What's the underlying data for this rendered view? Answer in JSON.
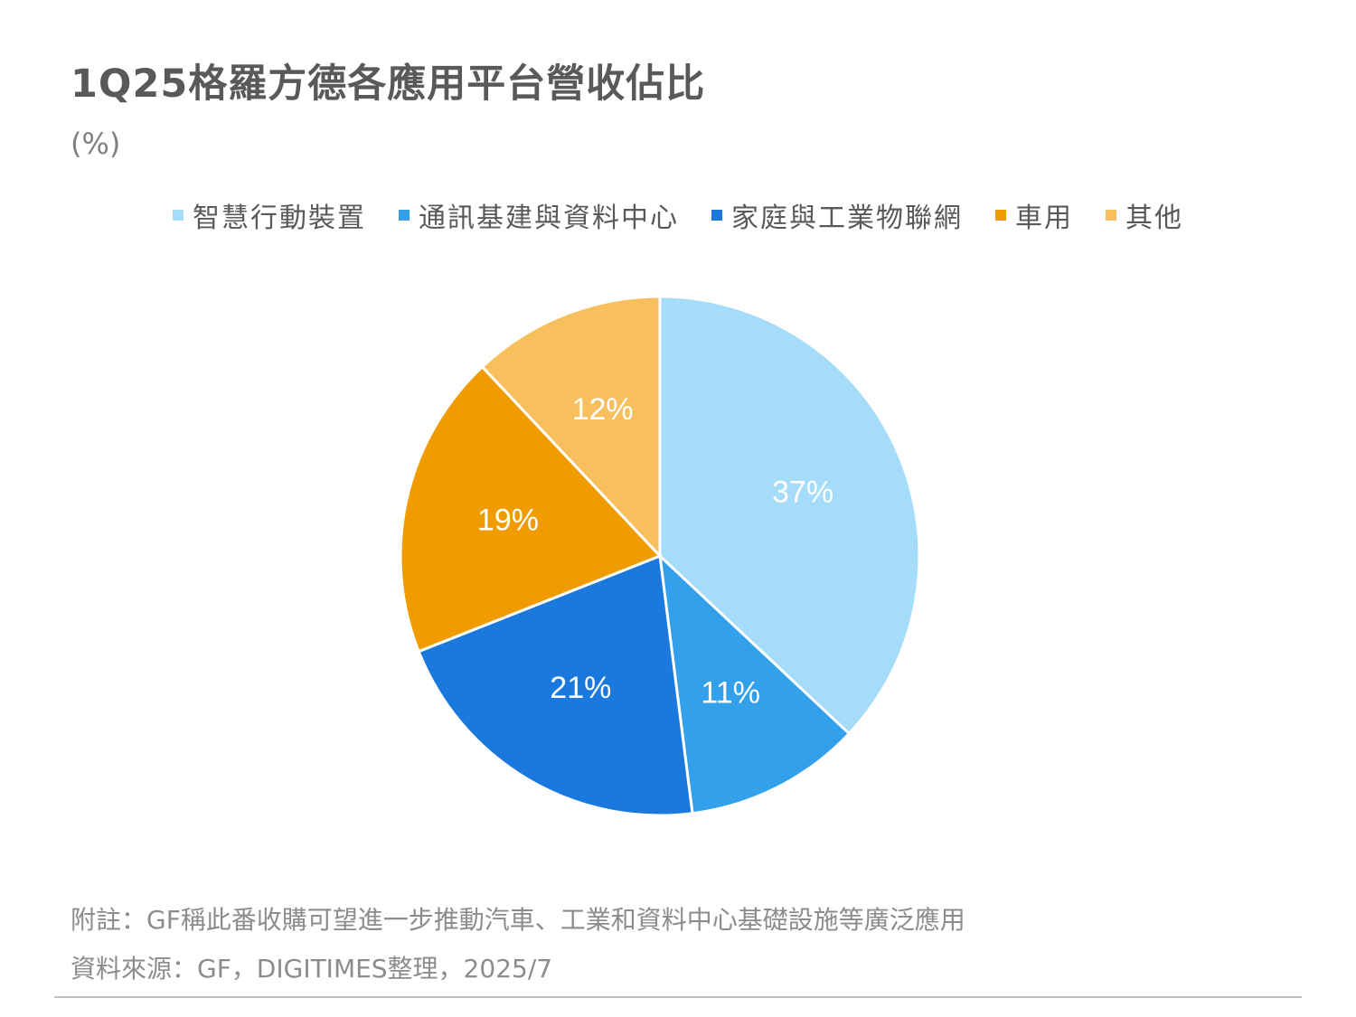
{
  "title": "1Q25格羅方德各應用平台營收佔比",
  "unit": "(%)",
  "chart_data": {
    "type": "pie",
    "title": "1Q25格羅方德各應用平台營收佔比",
    "unit": "(%)",
    "categories": [
      "智慧行動裝置",
      "通訊基建與資料中心",
      "家庭與工業物聯網",
      "車用",
      "其他"
    ],
    "values": [
      37,
      11,
      21,
      19,
      12
    ],
    "labels": [
      "37%",
      "11%",
      "21%",
      "19%",
      "12%"
    ],
    "colors": [
      "#A4DCFA",
      "#32A0EB",
      "#1B78DC",
      "#F09B00",
      "#F8C05C"
    ],
    "legend_position": "top"
  },
  "footnotes": {
    "note": "附註：GF稱此番收購可望進一步推動汽車、工業和資料中心基礎設施等廣泛應用",
    "source": "資料來源：GF，DIGITIMES整理，2025/7"
  }
}
